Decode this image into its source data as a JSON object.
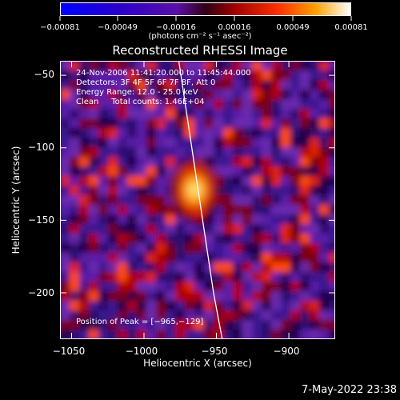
{
  "chart_data": {
    "type": "heatmap",
    "title": "Reconstructed RHESSI Image",
    "xlabel": "Heliocentric X (arcsec)",
    "ylabel": "Heliocentric Y (arcsec)",
    "xlim": [
      -1058,
      -868
    ],
    "ylim": [
      -232,
      -40
    ],
    "x_ticks": [
      "−1050",
      "−1000",
      "−950",
      "−900"
    ],
    "x_tick_values": [
      -1050,
      -1000,
      -950,
      -900
    ],
    "y_ticks": [
      "−50",
      "−100",
      "−150",
      "−200"
    ],
    "y_tick_values": [
      -50,
      -100,
      -150,
      -200
    ],
    "colorbar": {
      "ticks": [
        "−0.00081",
        "−0.00049",
        "−0.00016",
        "0.00016",
        "0.00049",
        "0.00081"
      ],
      "unit": "(photons cm⁻² s⁻¹ asec⁻²)",
      "min": -0.00081,
      "max": 0.00081
    },
    "annotations": [
      "24-Nov-2006 11:41:20.000 to 11:45:44.000",
      "Detectors: 3F 4F 5F 6F 7F 8F, Att 0",
      "Energy Range: 12.0 - 25.0 keV",
      "Clean     Total counts: 1.46E+04"
    ],
    "peak_label": "Position of Peak = [−965,−129]",
    "peak": [
      -965,
      -129
    ],
    "limb_curve_x": [
      -976,
      -970,
      -964,
      -958,
      -952,
      -946
    ],
    "limb_curve_y": [
      -40,
      -80,
      -120,
      -160,
      -200,
      -232
    ]
  },
  "timestamp": "7-May-2022 23:38"
}
